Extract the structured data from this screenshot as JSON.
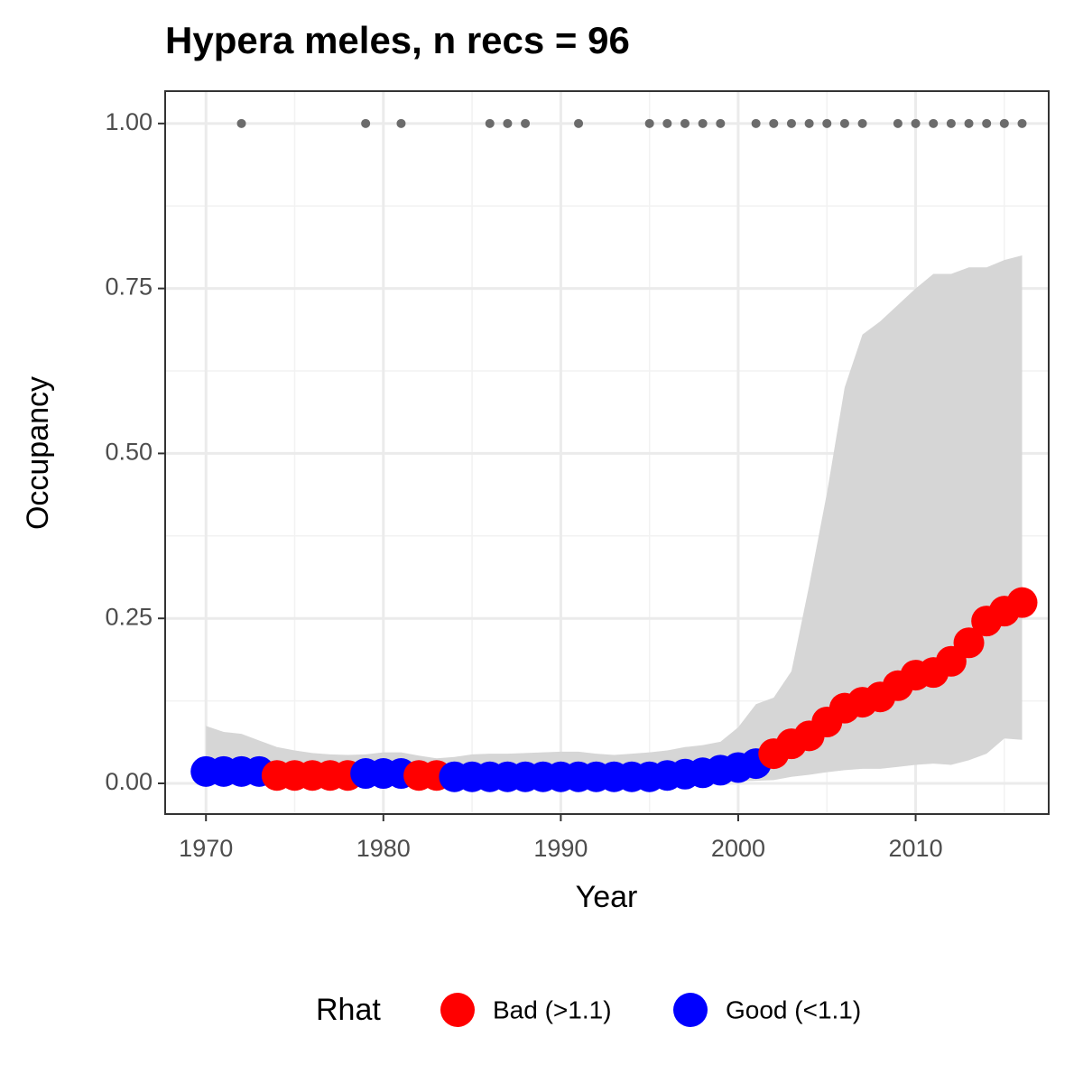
{
  "chart_data": {
    "type": "scatter",
    "title": "Hypera meles, n recs = 96",
    "x_label": "Year",
    "y_label": "Occupancy",
    "legend_title": "Rhat",
    "legend_position": "bottom",
    "grid": true,
    "xlim": [
      1967.7,
      2017.5
    ],
    "ylim": [
      -0.0465,
      1.049
    ],
    "xticks": [
      1970,
      1980,
      1990,
      2000,
      2010
    ],
    "yticks": [
      {
        "value": 0,
        "label": "0.00"
      },
      {
        "value": 0.25,
        "label": "0.25"
      },
      {
        "value": 0.5,
        "label": "0.50"
      },
      {
        "value": 0.75,
        "label": "0.75"
      },
      {
        "value": 1,
        "label": "1.00"
      }
    ],
    "x_minor_grid": [
      1975,
      1985,
      1995,
      2005,
      2015
    ],
    "y_minor_grid": [
      0.125,
      0.375,
      0.625,
      0.875
    ],
    "ribbon": {
      "color": "#d6d6d6",
      "x": [
        1970,
        1971,
        1972,
        1973,
        1974,
        1975,
        1976,
        1977,
        1978,
        1979,
        1980,
        1981,
        1982,
        1983,
        1984,
        1985,
        1986,
        1987,
        1988,
        1989,
        1990,
        1991,
        1992,
        1993,
        1994,
        1995,
        1996,
        1997,
        1998,
        1999,
        2000,
        2001,
        2002,
        2003,
        2004,
        2005,
        2006,
        2007,
        2008,
        2009,
        2010,
        2011,
        2012,
        2013,
        2014,
        2015,
        2016
      ],
      "upper": [
        0.087,
        0.078,
        0.075,
        0.065,
        0.055,
        0.05,
        0.046,
        0.044,
        0.043,
        0.044,
        0.047,
        0.047,
        0.042,
        0.038,
        0.04,
        0.044,
        0.045,
        0.045,
        0.046,
        0.047,
        0.048,
        0.048,
        0.045,
        0.043,
        0.045,
        0.047,
        0.05,
        0.055,
        0.058,
        0.063,
        0.085,
        0.12,
        0.13,
        0.17,
        0.3,
        0.44,
        0.6,
        0.68,
        0.7,
        0.725,
        0.75,
        0.772,
        0.772,
        0.782,
        0.782,
        0.793,
        0.8
      ],
      "lower": [
        0.003,
        0.003,
        0.003,
        0.003,
        0.003,
        0.003,
        0.003,
        0.003,
        0.003,
        0.003,
        0.003,
        0.003,
        0.003,
        0.003,
        0.003,
        0.003,
        0.003,
        0.003,
        0.003,
        0.003,
        0.003,
        0.003,
        0.003,
        0.003,
        0.003,
        0.003,
        0.003,
        0.003,
        0.003,
        0.003,
        0.003,
        0.004,
        0.005,
        0.01,
        0.013,
        0.017,
        0.02,
        0.022,
        0.022,
        0.025,
        0.028,
        0.03,
        0.028,
        0.035,
        0.045,
        0.068,
        0.066
      ]
    },
    "records": {
      "color": "#6b6b6b",
      "x": [
        1972,
        1979,
        1981,
        1986,
        1987,
        1988,
        1991,
        1995,
        1996,
        1997,
        1998,
        1999,
        2001,
        2002,
        2003,
        2004,
        2005,
        2006,
        2007,
        2009,
        2010,
        2011,
        2012,
        2013,
        2014,
        2015,
        2016
      ],
      "values": [
        1,
        1,
        1,
        1,
        1,
        1,
        1,
        1,
        1,
        1,
        1,
        1,
        1,
        1,
        1,
        1,
        1,
        1,
        1,
        1,
        1,
        1,
        1,
        1,
        1,
        1,
        1
      ]
    },
    "series": [
      {
        "name": "Bad (>1.1)",
        "color": "#ff0000",
        "x": [
          1974,
          1975,
          1976,
          1977,
          1978,
          1982,
          1983,
          2002,
          2003,
          2004,
          2005,
          2006,
          2007,
          2008,
          2009,
          2010,
          2011,
          2012,
          2013,
          2014,
          2015,
          2016
        ],
        "values": [
          0.012,
          0.012,
          0.012,
          0.012,
          0.012,
          0.012,
          0.012,
          0.045,
          0.06,
          0.072,
          0.093,
          0.114,
          0.123,
          0.131,
          0.148,
          0.164,
          0.168,
          0.185,
          0.213,
          0.246,
          0.261,
          0.274
        ]
      },
      {
        "name": "Good (<1.1)",
        "color": "#0000ff",
        "x": [
          1970,
          1971,
          1972,
          1973,
          1979,
          1980,
          1981,
          1984,
          1985,
          1986,
          1987,
          1988,
          1989,
          1990,
          1991,
          1992,
          1993,
          1994,
          1995,
          1996,
          1997,
          1998,
          1999,
          2000,
          2001
        ],
        "values": [
          0.018,
          0.018,
          0.018,
          0.018,
          0.015,
          0.015,
          0.015,
          0.01,
          0.01,
          0.01,
          0.01,
          0.01,
          0.01,
          0.01,
          0.01,
          0.01,
          0.01,
          0.01,
          0.01,
          0.012,
          0.014,
          0.016,
          0.02,
          0.024,
          0.03
        ]
      }
    ]
  }
}
